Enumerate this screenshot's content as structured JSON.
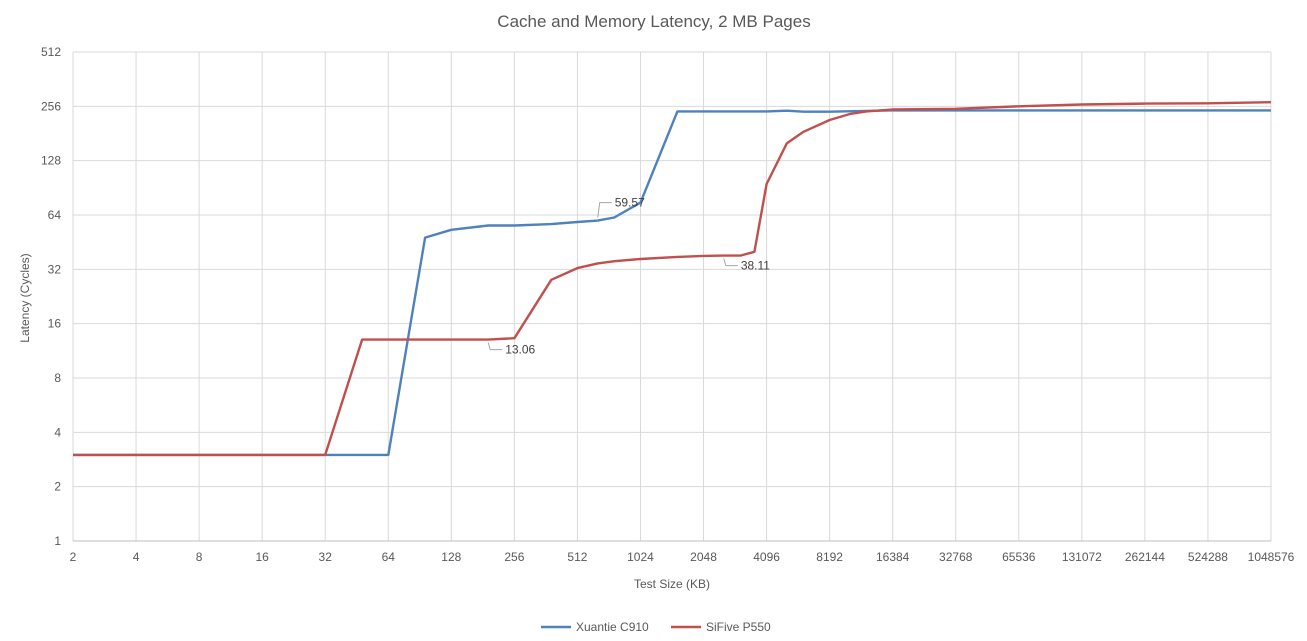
{
  "chart_data": {
    "type": "line",
    "title": "Cache and Memory Latency, 2 MB Pages",
    "xlabel": "Test Size (KB)",
    "ylabel": "Latency (Cycles)",
    "x_scale": "log2",
    "y_scale": "log2",
    "xlim": [
      2,
      1048576
    ],
    "ylim": [
      1,
      512
    ],
    "x_ticks": [
      "2",
      "4",
      "8",
      "16",
      "32",
      "64",
      "128",
      "256",
      "512",
      "1024",
      "2048",
      "4096",
      "8192",
      "16384",
      "32768",
      "65536",
      "131072",
      "262144",
      "524288",
      "1048576"
    ],
    "y_ticks": [
      "1",
      "2",
      "4",
      "8",
      "16",
      "32",
      "64",
      "128",
      "256",
      "512"
    ],
    "grid": true,
    "legend": "bottom-center",
    "series": [
      {
        "name": "Xuantie C910",
        "color": "#4F81BD",
        "points": [
          [
            2,
            3
          ],
          [
            32,
            3
          ],
          [
            64,
            3
          ],
          [
            96,
            48
          ],
          [
            128,
            53
          ],
          [
            192,
            56
          ],
          [
            256,
            56
          ],
          [
            384,
            57
          ],
          [
            512,
            58.5
          ],
          [
            640,
            59.57
          ],
          [
            768,
            62
          ],
          [
            1024,
            75
          ],
          [
            1536,
            240
          ],
          [
            2048,
            240
          ],
          [
            3072,
            240
          ],
          [
            4096,
            240
          ],
          [
            5120,
            242
          ],
          [
            6144,
            239
          ],
          [
            8192,
            239
          ],
          [
            16384,
            243
          ],
          [
            32768,
            243
          ],
          [
            65536,
            243
          ],
          [
            131072,
            243
          ],
          [
            262144,
            243
          ],
          [
            524288,
            243
          ],
          [
            1048576,
            243
          ]
        ]
      },
      {
        "name": "SiFive P550",
        "color": "#C0504D",
        "points": [
          [
            2,
            3
          ],
          [
            32,
            3
          ],
          [
            48,
            13.06
          ],
          [
            64,
            13.06
          ],
          [
            128,
            13.06
          ],
          [
            192,
            13.06
          ],
          [
            256,
            13.3
          ],
          [
            384,
            28
          ],
          [
            512,
            32.5
          ],
          [
            640,
            34.5
          ],
          [
            768,
            35.5
          ],
          [
            1024,
            36.5
          ],
          [
            1536,
            37.5
          ],
          [
            2048,
            38
          ],
          [
            2560,
            38.11
          ],
          [
            3072,
            38.11
          ],
          [
            3584,
            40
          ],
          [
            4096,
            95
          ],
          [
            5120,
            160
          ],
          [
            6144,
            185
          ],
          [
            8192,
            215
          ],
          [
            10240,
            232
          ],
          [
            12288,
            240
          ],
          [
            16384,
            246
          ],
          [
            32768,
            248
          ],
          [
            65536,
            256
          ],
          [
            131072,
            262
          ],
          [
            262144,
            265
          ],
          [
            524288,
            266
          ],
          [
            1048576,
            270
          ]
        ]
      }
    ],
    "annotations": [
      {
        "series": "Xuantie C910",
        "x": 640,
        "y": 59.57,
        "text": "59.57"
      },
      {
        "series": "SiFive P550",
        "x": 2560,
        "y": 38.11,
        "text": "38.11"
      },
      {
        "series": "SiFive P550",
        "x": 192,
        "y": 13.06,
        "text": "13.06"
      }
    ]
  }
}
